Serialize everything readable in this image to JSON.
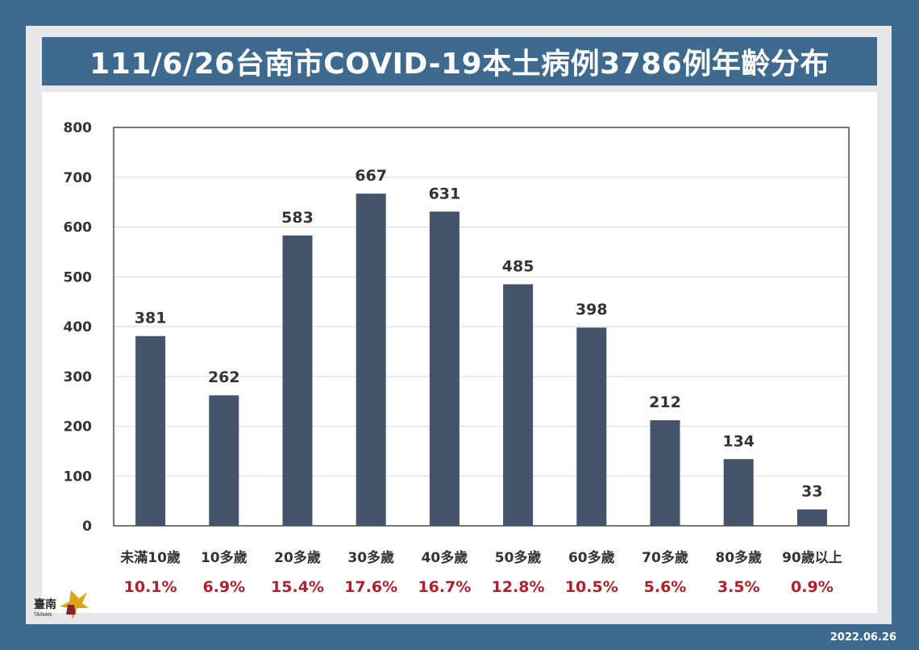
{
  "chart_data": {
    "type": "bar",
    "title": "111/6/26台南市COVID-19本土病例3786例年齡分布",
    "categories": [
      "未滿10歲",
      "10多歲",
      "20多歲",
      "30多歲",
      "40多歲",
      "50多歲",
      "60多歲",
      "70多歲",
      "80多歲",
      "90歲以上"
    ],
    "values": [
      381,
      262,
      583,
      667,
      631,
      485,
      398,
      212,
      134,
      33
    ],
    "percentages": [
      "10.1%",
      "6.9%",
      "15.4%",
      "17.6%",
      "16.7%",
      "12.8%",
      "10.5%",
      "5.6%",
      "3.5%",
      "0.9%"
    ],
    "yticks": [
      "0",
      "100",
      "200",
      "300",
      "400",
      "500",
      "600",
      "700",
      "800"
    ],
    "ylim": [
      0,
      800
    ],
    "grid": true,
    "bar_color": "#44546a",
    "pct_color": "#b0202a",
    "grid_color": "#d9d9d9"
  },
  "footer": {
    "date": "2022.06.26"
  },
  "logo": {
    "text": "臺南",
    "subtext": "TAINAN"
  }
}
